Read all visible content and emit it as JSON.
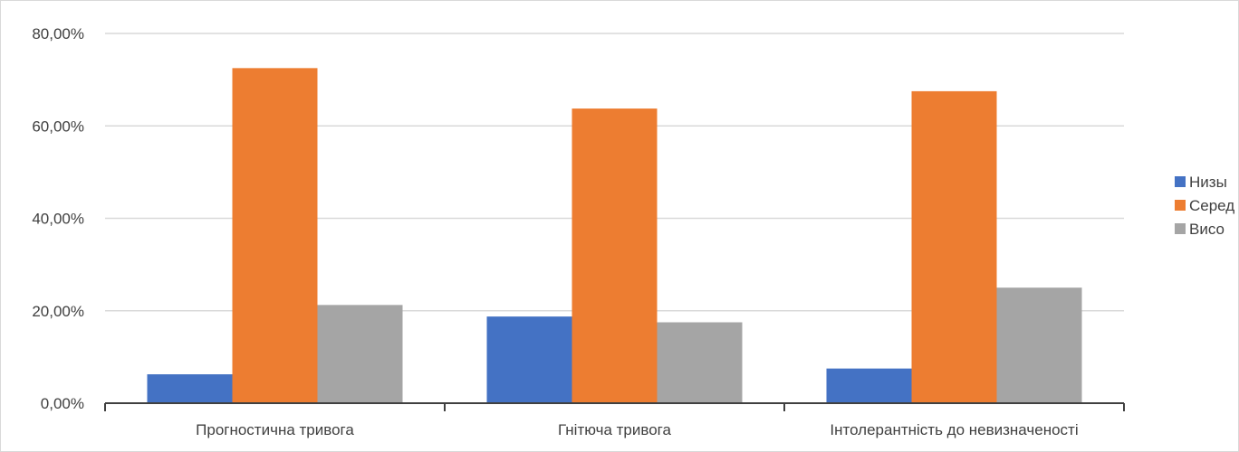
{
  "chart_data": {
    "type": "bar",
    "categories": [
      "Прогностична тривога",
      "Гнітюча тривога",
      "Інтолерантність до невизначеності"
    ],
    "series": [
      {
        "name": "Низы",
        "color": "#4472c4",
        "values": [
          6.25,
          18.75,
          7.5
        ]
      },
      {
        "name": "Серед",
        "color": "#ed7d31",
        "values": [
          72.5,
          63.75,
          67.5
        ]
      },
      {
        "name": "Висо",
        "color": "#a5a5a5",
        "values": [
          21.25,
          17.5,
          25.0
        ]
      }
    ],
    "yticks": [
      "0,00%",
      "20,00%",
      "40,00%",
      "60,00%",
      "80,00%"
    ],
    "ylim": [
      0,
      80
    ],
    "ytick_step": 20,
    "grid": true,
    "legend_position": "right"
  }
}
